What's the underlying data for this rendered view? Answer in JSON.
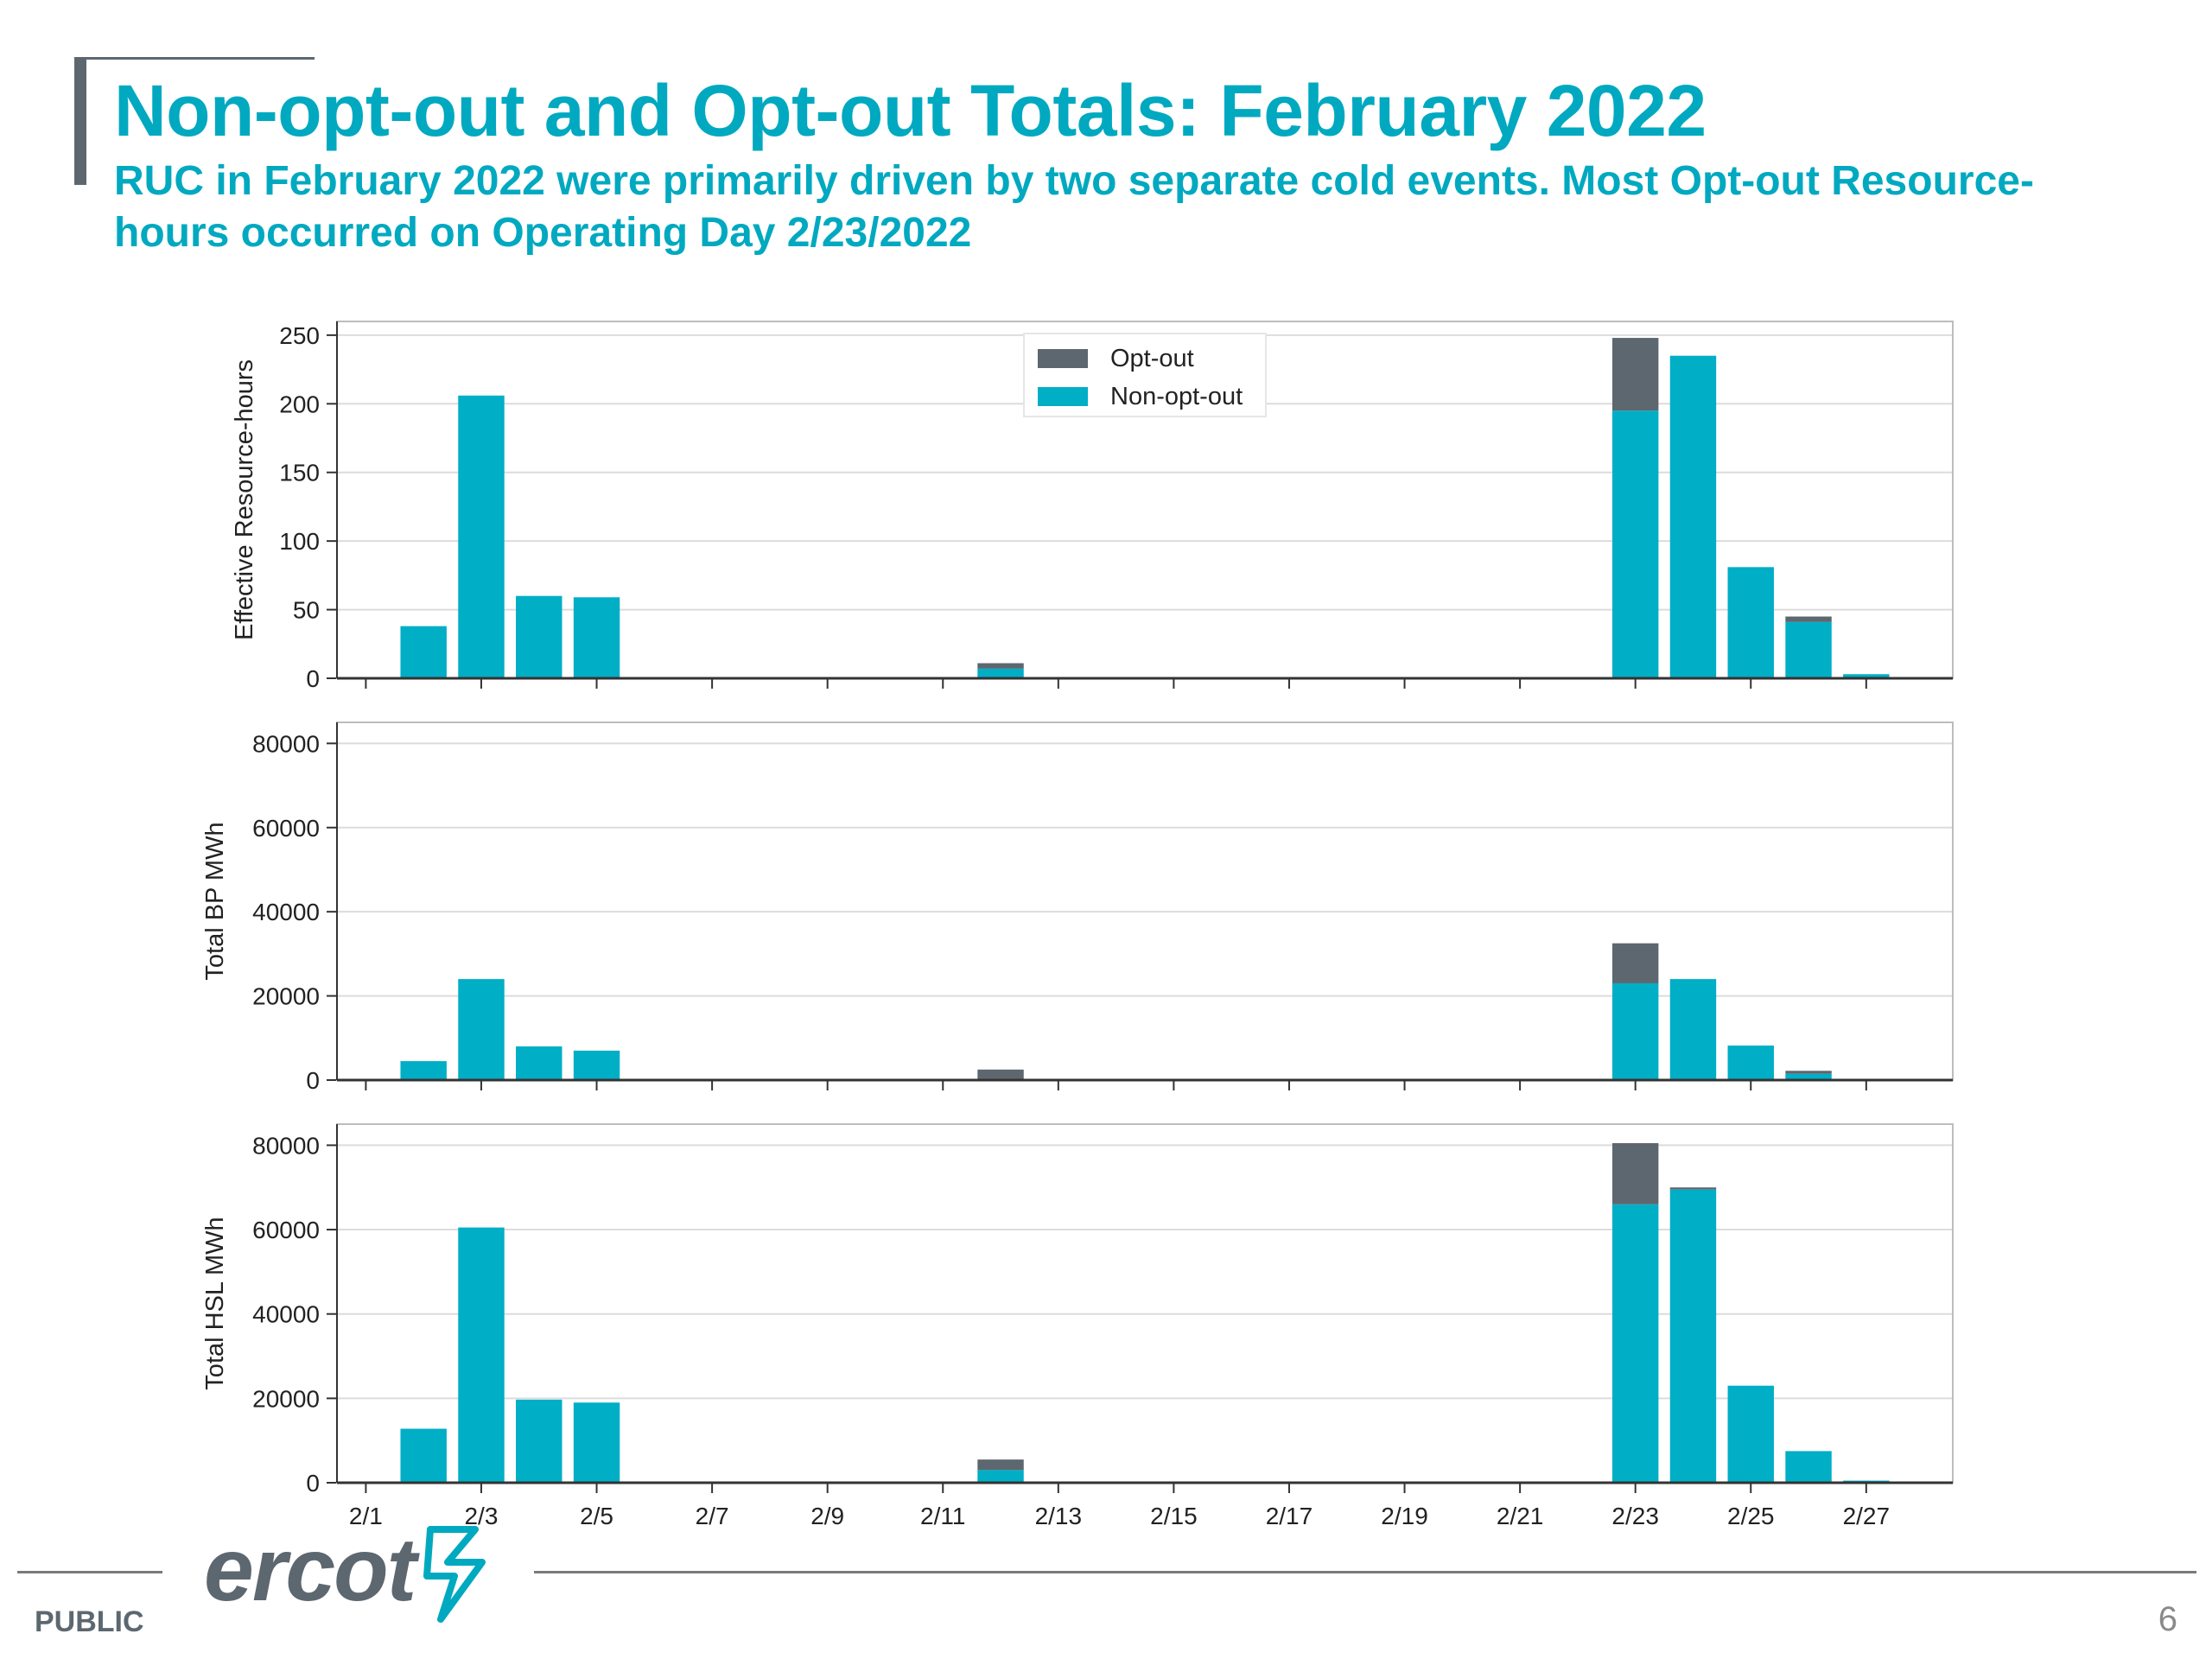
{
  "slide": {
    "title": "Non-opt-out and Opt-out Totals: February 2022",
    "subtitle": "RUC in February 2022 were primarily driven by two separate cold events. Most Opt-out Resource-hours occurred on Operating Day 2/23/2022",
    "footer_label": "PUBLIC",
    "page_number": "6",
    "logo_text": "ercot"
  },
  "colors": {
    "accent": "#00a9c0",
    "opt_out": "#5d6770",
    "non_opt_out": "#00aec6"
  },
  "chart_data": [
    {
      "type": "bar",
      "stacked": true,
      "ylabel": "Effective Resource-hours",
      "ylim": [
        0,
        260
      ],
      "yticks": [
        0,
        50,
        100,
        150,
        200,
        250
      ],
      "yticklabels": [
        "0",
        "50",
        "100",
        "150",
        "200",
        "250"
      ],
      "grid": true,
      "legend": {
        "position": "top-center",
        "entries": [
          "Opt-out",
          "Non-opt-out"
        ]
      },
      "categories": [
        "2/2",
        "2/3",
        "2/4",
        "2/5",
        "2/12",
        "2/23",
        "2/24",
        "2/25",
        "2/26",
        "2/27"
      ],
      "series": [
        {
          "name": "Non-opt-out",
          "values": [
            38,
            206,
            60,
            59,
            7,
            195,
            235,
            81,
            41,
            3
          ]
        },
        {
          "name": "Opt-out",
          "values": [
            0,
            0,
            0,
            0,
            4,
            53,
            0,
            0,
            4,
            0
          ]
        }
      ]
    },
    {
      "type": "bar",
      "stacked": true,
      "ylabel": "Total BP MWh",
      "ylim": [
        0,
        85000
      ],
      "yticks": [
        0,
        20000,
        40000,
        60000,
        80000
      ],
      "yticklabels": [
        "0",
        "20000",
        "40000",
        "60000",
        "80000"
      ],
      "grid": true,
      "categories": [
        "2/2",
        "2/3",
        "2/4",
        "2/5",
        "2/12",
        "2/23",
        "2/24",
        "2/25",
        "2/26",
        "2/27"
      ],
      "series": [
        {
          "name": "Non-opt-out",
          "values": [
            4500,
            24000,
            8000,
            7000,
            0,
            23000,
            24000,
            8200,
            1500,
            0
          ]
        },
        {
          "name": "Opt-out",
          "values": [
            0,
            0,
            0,
            0,
            2500,
            9500,
            0,
            0,
            700,
            0
          ]
        }
      ]
    },
    {
      "type": "bar",
      "stacked": true,
      "ylabel": "Total HSL MWh",
      "ylim": [
        0,
        85000
      ],
      "yticks": [
        0,
        20000,
        40000,
        60000,
        80000
      ],
      "yticklabels": [
        "0",
        "20000",
        "40000",
        "60000",
        "80000"
      ],
      "grid": true,
      "categories": [
        "2/2",
        "2/3",
        "2/4",
        "2/5",
        "2/12",
        "2/23",
        "2/24",
        "2/25",
        "2/26",
        "2/27"
      ],
      "series": [
        {
          "name": "Non-opt-out",
          "values": [
            12800,
            60500,
            19700,
            19000,
            3000,
            66000,
            69500,
            23000,
            7500,
            500
          ]
        },
        {
          "name": "Opt-out",
          "values": [
            0,
            0,
            0,
            0,
            2500,
            14500,
            500,
            0,
            0,
            0
          ]
        }
      ],
      "xticks": [
        "2/1",
        "2/3",
        "2/5",
        "2/7",
        "2/9",
        "2/11",
        "2/13",
        "2/15",
        "2/17",
        "2/19",
        "2/21",
        "2/23",
        "2/25",
        "2/27"
      ]
    }
  ]
}
